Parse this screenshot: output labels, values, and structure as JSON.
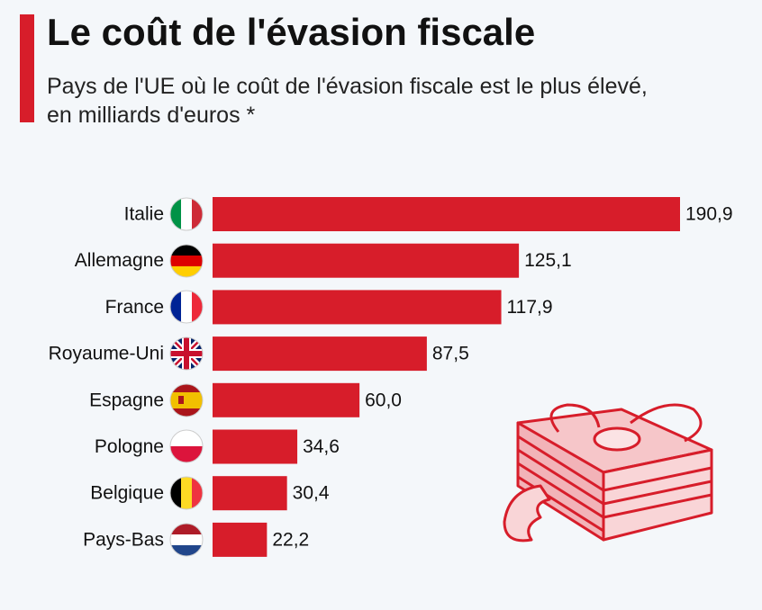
{
  "chart_data": {
    "type": "bar",
    "orientation": "horizontal",
    "title": "Le coût de l'évasion fiscale",
    "subtitle": "Pays de l'UE où le coût de l'évasion fiscale est le plus élevé, en milliards d'euros *",
    "categories": [
      "Italie",
      "Allemagne",
      "France",
      "Royaume-Uni",
      "Espagne",
      "Pologne",
      "Belgique",
      "Pays-Bas"
    ],
    "values": [
      190.9,
      125.1,
      117.9,
      87.5,
      60.0,
      34.6,
      30.4,
      22.2
    ],
    "value_labels": [
      "190,9",
      "125,1",
      "117,9",
      "87,5",
      "60,0",
      "34,6",
      "30,4",
      "22,2"
    ],
    "color": "#d71d2a"
  }
}
